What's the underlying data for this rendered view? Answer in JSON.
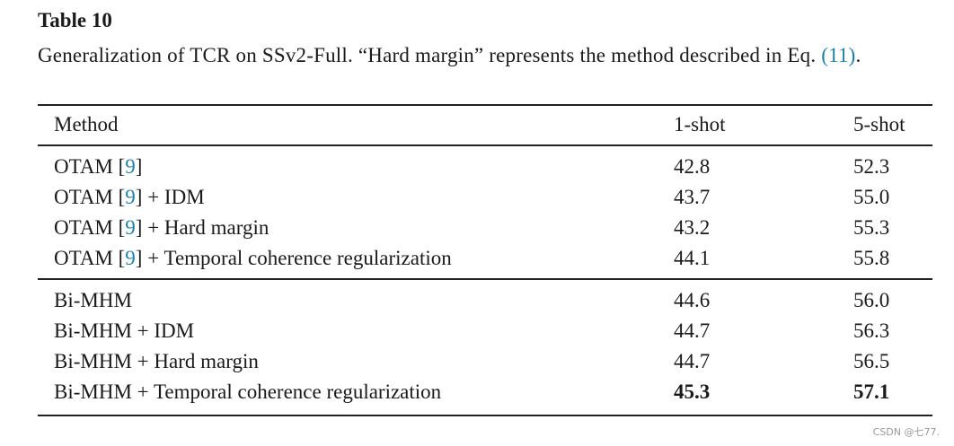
{
  "title": "Table 10",
  "caption": [
    "Generalization of TCR on SSv2-Full. “Hard margin” represents the method described in Eq. ",
    "(11)",
    "."
  ],
  "table": {
    "header": [
      "Method",
      "1-shot",
      "5-shot"
    ],
    "groups": [
      [
        {
          "method": [
            "OTAM [",
            "9",
            "]"
          ],
          "one_shot": "42.8",
          "five_shot": "52.3"
        },
        {
          "method": [
            "OTAM [",
            "9",
            "] + IDM"
          ],
          "one_shot": "43.7",
          "five_shot": "55.0"
        },
        {
          "method": [
            "OTAM [",
            "9",
            "] + Hard margin"
          ],
          "one_shot": "43.2",
          "five_shot": "55.3"
        },
        {
          "method": [
            "OTAM [",
            "9",
            "] + Temporal coherence regularization"
          ],
          "one_shot": "44.1",
          "five_shot": "55.8"
        }
      ],
      [
        {
          "method": [
            "Bi-MHM"
          ],
          "one_shot": "44.6",
          "five_shot": "56.0"
        },
        {
          "method": [
            "Bi-MHM + IDM"
          ],
          "one_shot": "44.7",
          "five_shot": "56.3"
        },
        {
          "method": [
            "Bi-MHM + Hard margin"
          ],
          "one_shot": "44.7",
          "five_shot": "56.5"
        },
        {
          "method": [
            "Bi-MHM + Temporal coherence regularization"
          ],
          "one_shot": "45.3",
          "five_shot": "57.1",
          "bold": true
        }
      ]
    ]
  },
  "watermark": "CSDN @七77."
}
